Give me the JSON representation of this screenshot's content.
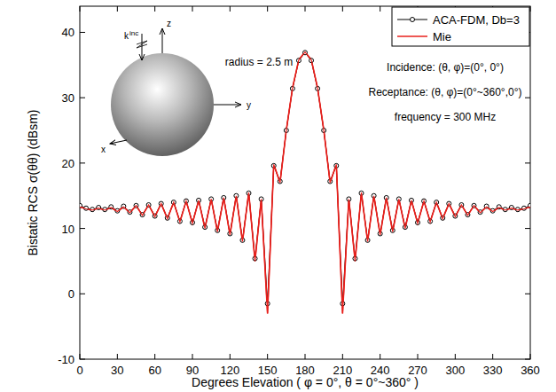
{
  "chart_data": {
    "type": "line",
    "x_label": "Degrees Elevation ( φ = 0°, θ = 0°~360° )",
    "y_label": "Bistatic RCS σ(θθ) (dBsm)",
    "annotations": [
      "radius = 2.5 m",
      "Incidence: (θ, φ)=(0°, 0°)",
      "Receptance: (θ, φ)=(0°~360°,0°)",
      "frequency = 300 MHz"
    ],
    "inset_labels": [
      "z",
      "y",
      "x",
      "k",
      "inc"
    ],
    "legend": "upper right",
    "grid": false,
    "xlim": [
      0,
      360
    ],
    "ylim": [
      -10,
      44
    ],
    "xticks": [
      0,
      30,
      60,
      90,
      120,
      150,
      180,
      210,
      240,
      270,
      300,
      330,
      360
    ],
    "yticks": [
      -10,
      0,
      10,
      20,
      30,
      40
    ],
    "x": [
      0,
      5,
      10,
      15,
      20,
      25,
      30,
      35,
      40,
      45,
      50,
      55,
      60,
      65,
      70,
      75,
      80,
      85,
      90,
      95,
      100,
      105,
      110,
      115,
      120,
      125,
      130,
      135,
      140,
      145,
      150,
      155,
      160,
      165,
      170,
      175,
      180,
      185,
      190,
      195,
      200,
      205,
      210,
      215,
      220,
      225,
      230,
      235,
      240,
      245,
      250,
      255,
      260,
      265,
      270,
      275,
      280,
      285,
      290,
      295,
      300,
      305,
      310,
      315,
      320,
      325,
      330,
      335,
      340,
      345,
      350,
      355,
      360
    ],
    "series": [
      {
        "name": "ACA-FDM, Db=3",
        "color": "#000000",
        "marker": "circle",
        "line_style": "solid",
        "values": [
          13.5,
          13.1,
          12.9,
          13.2,
          12.9,
          13.3,
          12.7,
          13.4,
          12.5,
          13.5,
          12.1,
          13.6,
          11.9,
          13.8,
          11.6,
          14.0,
          11.1,
          14.2,
          10.9,
          14.3,
          10.2,
          14.5,
          9.7,
          14.7,
          9.2,
          15.0,
          8.2,
          15.4,
          5.4,
          14.5,
          -1.5,
          19.6,
          17.2,
          25.0,
          31.4,
          35.7,
          36.9,
          35.7,
          31.4,
          25.0,
          17.2,
          19.6,
          -1.5,
          14.5,
          5.4,
          15.4,
          8.2,
          15.0,
          9.2,
          14.7,
          9.7,
          14.5,
          10.2,
          14.3,
          10.9,
          14.2,
          11.1,
          14.0,
          11.6,
          13.8,
          11.9,
          13.6,
          12.1,
          13.5,
          12.5,
          13.4,
          12.7,
          13.3,
          12.9,
          13.2,
          12.9,
          13.1,
          13.5
        ]
      },
      {
        "name": "Mie",
        "color": "#e8201c",
        "marker": "none",
        "line_style": "solid",
        "values": [
          13.3,
          13.0,
          12.8,
          13.1,
          12.8,
          13.2,
          12.6,
          13.3,
          12.4,
          13.5,
          12.0,
          13.6,
          11.8,
          13.8,
          11.5,
          14.0,
          11.0,
          14.2,
          10.8,
          14.3,
          10.0,
          14.5,
          9.5,
          14.7,
          9.0,
          15.0,
          8.0,
          15.5,
          5.0,
          14.5,
          -3.0,
          19.8,
          17.0,
          25.0,
          31.5,
          35.8,
          37.0,
          35.8,
          31.5,
          25.0,
          17.0,
          19.8,
          -3.0,
          14.5,
          5.0,
          15.5,
          8.0,
          15.0,
          9.0,
          14.7,
          9.5,
          14.5,
          10.0,
          14.3,
          10.8,
          14.2,
          11.0,
          14.0,
          11.5,
          13.8,
          11.8,
          13.6,
          12.0,
          13.5,
          12.4,
          13.3,
          12.6,
          13.2,
          12.8,
          13.1,
          12.8,
          13.0,
          13.3
        ]
      }
    ]
  }
}
